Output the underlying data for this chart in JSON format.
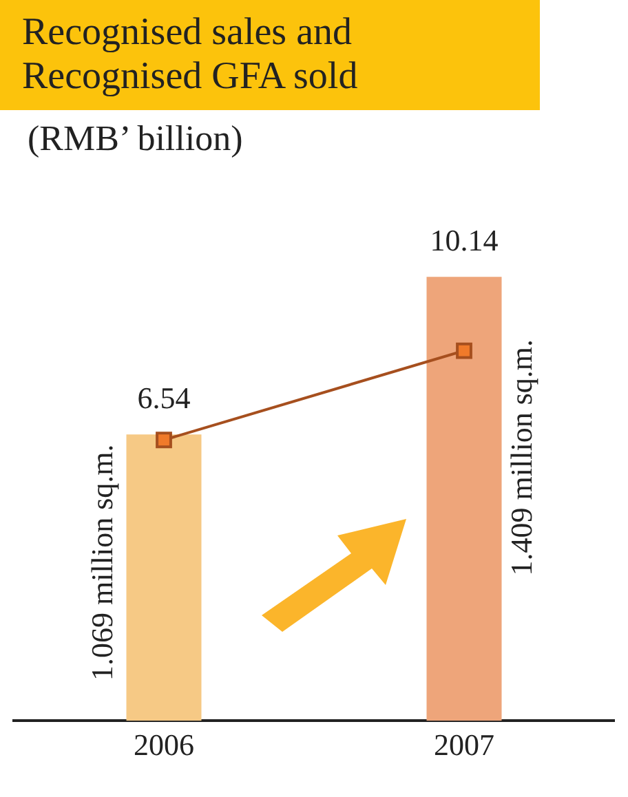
{
  "chart_data": {
    "type": "bar",
    "title": "Recognised sales and Recognised GFA sold",
    "subtitle": "(RMB’ billion)",
    "categories": [
      "2006",
      "2007"
    ],
    "series": [
      {
        "colors": [
          "#f6c985",
          "#eea57a"
        ],
        "values": [
          6.54,
          10.14
        ]
      },
      {
        "type": "line",
        "color": "#a64f1e",
        "values": [
          1.069,
          1.409
        ],
        "axis": "y2",
        "marker": "square",
        "value_labels": [
          "1.069 million sq.m.",
          "1.409 million sq.m."
        ]
      }
    ],
    "tick_labels": "x",
    "data_labels": true,
    "grid": false,
    "legend": false
  }
}
